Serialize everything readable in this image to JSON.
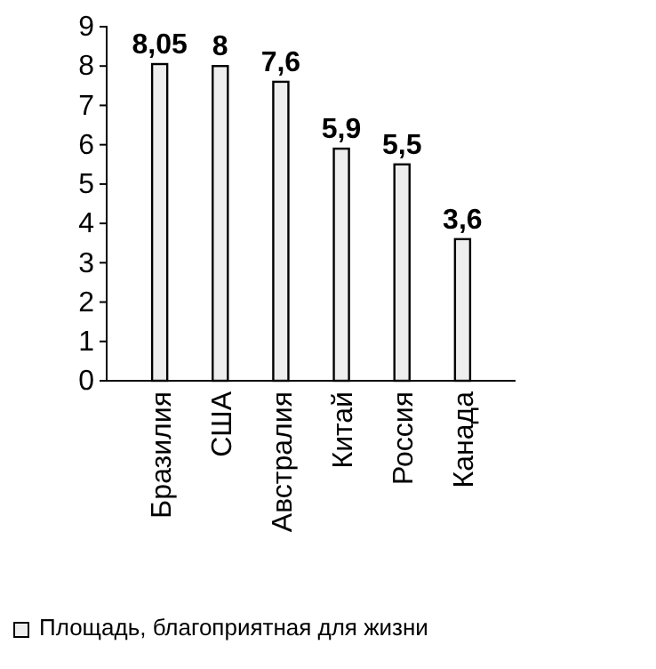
{
  "chart_data": {
    "type": "bar",
    "categories": [
      "Бразилия",
      "США",
      "Австралия",
      "Китай",
      "Россия",
      "Канада"
    ],
    "series": [
      {
        "name": "Площадь, благоприятная для жизни",
        "color": "#eeeeee",
        "values": [
          8.05,
          8,
          7.6,
          5.9,
          5.5,
          3.6
        ],
        "value_labels": [
          "8,05",
          "8",
          "7,6",
          "5,9",
          "5,5",
          "3,6"
        ]
      }
    ],
    "ylim": [
      0,
      9
    ],
    "yticks": [
      0,
      1,
      2,
      3,
      4,
      5,
      6,
      7,
      8,
      9
    ],
    "grid": false,
    "legend": "bottom"
  }
}
